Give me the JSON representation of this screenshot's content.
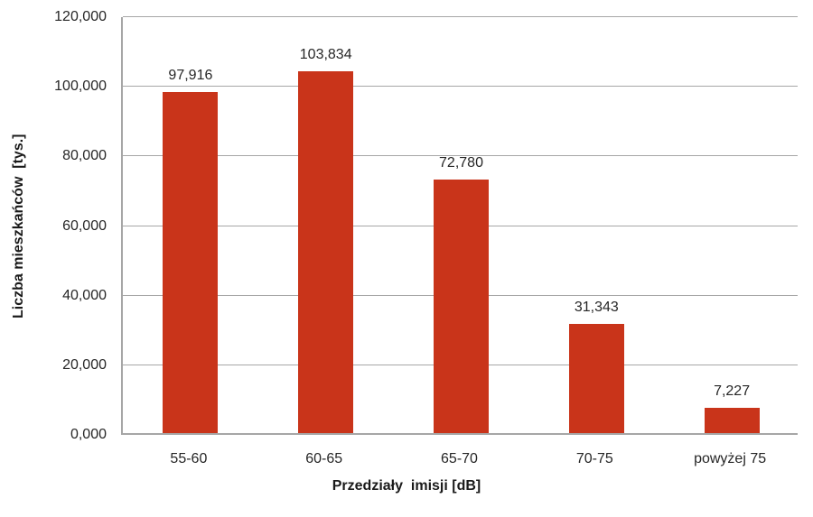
{
  "chart_data": {
    "type": "bar",
    "title": "",
    "xlabel": "Przedziały  imisji [dB]",
    "ylabel": "Liczba mieszkańców  [tys.]",
    "categories": [
      "55-60",
      "60-65",
      "65-70",
      "70-75",
      "powyżej 75"
    ],
    "values": [
      97916,
      103834,
      72780,
      31343,
      7227
    ],
    "value_labels": [
      "97,916",
      "103,834",
      "72,780",
      "31,343",
      "7,227"
    ],
    "ylim": [
      0,
      120000
    ],
    "yticks": [
      {
        "value": 0,
        "label": "0,000"
      },
      {
        "value": 20000,
        "label": "20,000"
      },
      {
        "value": 40000,
        "label": "40,000"
      },
      {
        "value": 60000,
        "label": "60,000"
      },
      {
        "value": 80000,
        "label": "80,000"
      },
      {
        "value": 100000,
        "label": "100,000"
      },
      {
        "value": 120000,
        "label": "120,000"
      }
    ],
    "grid": true,
    "legend": "none",
    "colors": {
      "bar": "#c9341a",
      "gridline": "#a6a6a6",
      "axis": "#a6a6a6",
      "text": "#262626"
    }
  }
}
